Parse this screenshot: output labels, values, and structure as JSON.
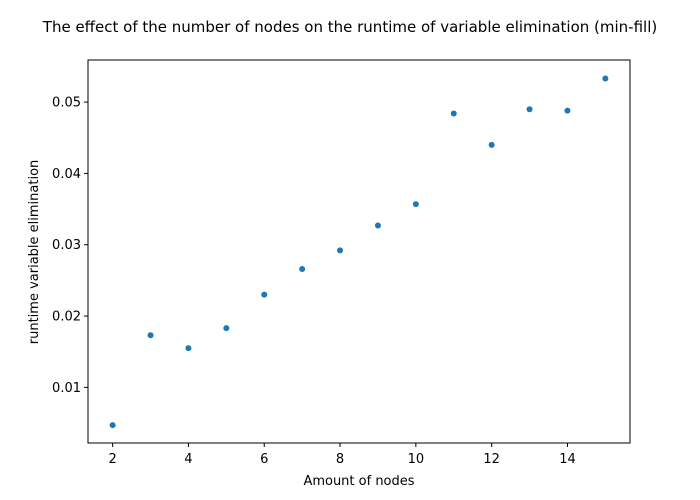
{
  "chart_data": {
    "type": "scatter",
    "title": "The effect of the number of nodes on the runtime of variable elimination (min-fill)",
    "xlabel": "Amount of nodes",
    "ylabel": "runtime variable elimination",
    "xlim": [
      1.35,
      15.65
    ],
    "ylim": [
      0.0022,
      0.0559
    ],
    "x_ticks": [
      2,
      4,
      6,
      8,
      10,
      12,
      14
    ],
    "y_ticks": [
      0.01,
      0.02,
      0.03,
      0.04,
      0.05
    ],
    "x_tick_labels": [
      "2",
      "4",
      "6",
      "8",
      "10",
      "12",
      "14"
    ],
    "y_tick_labels": [
      "0.01",
      "0.02",
      "0.03",
      "0.04",
      "0.05"
    ],
    "grid": false,
    "marker_color": "#1f77b4",
    "series": [
      {
        "x": [
          2,
          3,
          4,
          5,
          6,
          7,
          8,
          9,
          10,
          11,
          12,
          13,
          14,
          15
        ],
        "y": [
          0.0047,
          0.0173,
          0.0155,
          0.0183,
          0.023,
          0.0266,
          0.0292,
          0.0327,
          0.0357,
          0.0484,
          0.044,
          0.049,
          0.0488,
          0.0533
        ]
      }
    ]
  }
}
